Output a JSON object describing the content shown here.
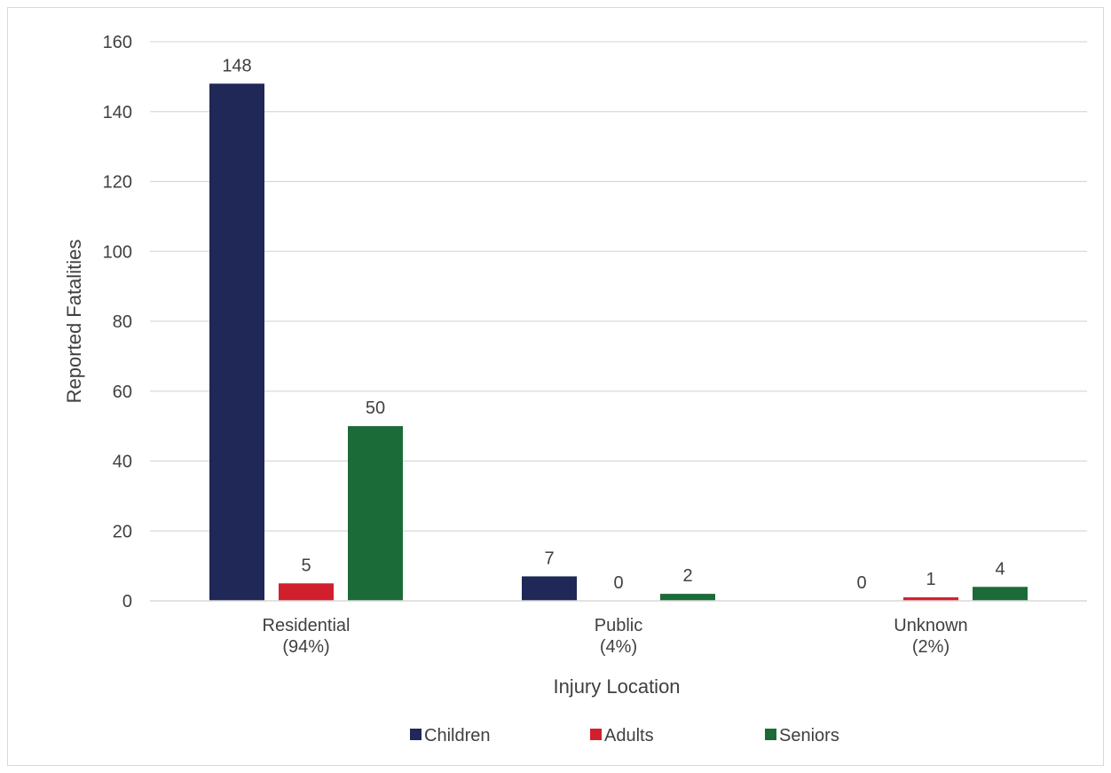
{
  "chart_data": {
    "type": "bar",
    "xlabel": "Injury Location",
    "ylabel": "Reported Fatalities",
    "ylim": [
      0,
      160
    ],
    "yticks": [
      0,
      20,
      40,
      60,
      80,
      100,
      120,
      140,
      160
    ],
    "categories": [
      [
        "Residential",
        "(94%)"
      ],
      [
        "Public",
        "(4%)"
      ],
      [
        "Unknown",
        "(2%)"
      ]
    ],
    "series": [
      {
        "name": "Children",
        "color": "#1f2857",
        "values": [
          148,
          7,
          0
        ]
      },
      {
        "name": "Adults",
        "color": "#d11f2e",
        "values": [
          5,
          0,
          1
        ]
      },
      {
        "name": "Seniors",
        "color": "#1b6b38",
        "values": [
          50,
          2,
          4
        ]
      }
    ],
    "grid": true,
    "legend_position": "bottom"
  }
}
